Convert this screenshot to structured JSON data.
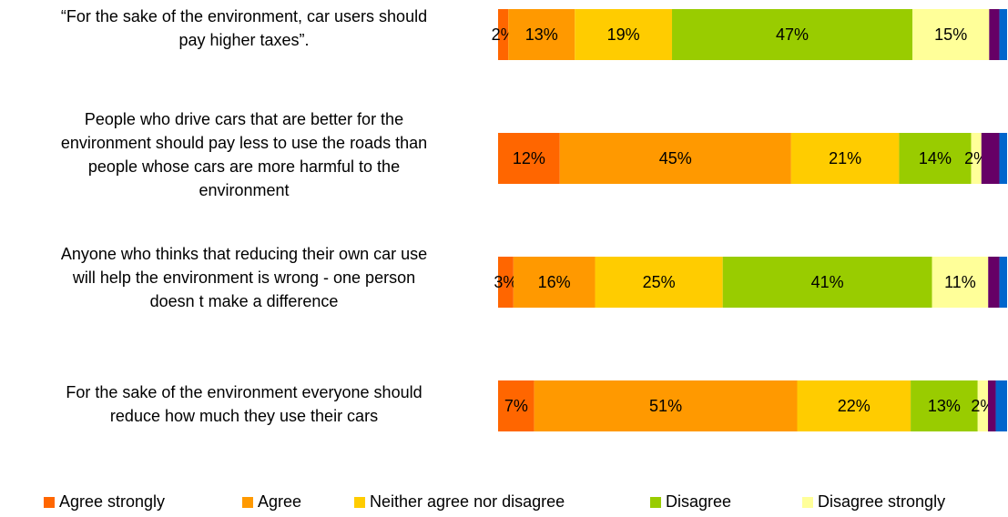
{
  "chart_data": {
    "type": "bar",
    "orientation": "horizontal",
    "stacked": true,
    "categories": [
      "“For the sake of the environment, car users should pay higher taxes”.",
      "People who drive cars that are better for the environment should pay less to use the roads than people whose cars are more harmful to the environment",
      "Anyone who thinks that reducing their own car use will help the environment is wrong - one person doesn t make a difference",
      "For the sake of the environment everyone should reduce how much they use their cars"
    ],
    "category_lines": [
      [
        "“For the sake of the environment, car users should",
        "pay higher taxes”."
      ],
      [
        "People who drive cars that are better for the",
        "environment should pay less to use the roads than",
        "people whose cars are more harmful to the",
        "environment"
      ],
      [
        "Anyone who thinks that reducing their own car use",
        "will help the environment is wrong - one person",
        "doesn t make a difference"
      ],
      [
        "For the sake of the environment everyone should",
        "reduce how much they use their cars"
      ]
    ],
    "series": [
      {
        "name": "Agree strongly",
        "color": "#ff6600",
        "values": [
          2,
          12,
          3,
          7
        ]
      },
      {
        "name": "Agree",
        "color": "#ff9900",
        "values": [
          13,
          45,
          16,
          51
        ]
      },
      {
        "name": "Neither agree nor disagree",
        "color": "#ffcc00",
        "values": [
          19,
          21,
          25,
          22
        ]
      },
      {
        "name": "Disagree",
        "color": "#99cc00",
        "values": [
          47,
          14,
          41,
          13
        ]
      },
      {
        "name": "Disagree strongly",
        "color": "#ffff99",
        "values": [
          15,
          2,
          11,
          2
        ]
      },
      {
        "name": "",
        "color": "#660066",
        "values": [
          2,
          3.5,
          2.2,
          1.5
        ]
      },
      {
        "name": "",
        "color": "#0066cc",
        "values": [
          1.5,
          1.5,
          1.5,
          2.2
        ]
      }
    ],
    "data_labels": [
      [
        "2%",
        "13%",
        "19%",
        "47%",
        "15%",
        "",
        ""
      ],
      [
        "12%",
        "45%",
        "21%",
        "14%",
        "2%",
        "",
        ""
      ],
      [
        "3%",
        "16%",
        "25%",
        "41%",
        "11%",
        "",
        ""
      ],
      [
        "7%",
        "51%",
        "22%",
        "13%",
        "2%",
        "",
        ""
      ]
    ],
    "xlim": [
      0,
      100
    ],
    "legend_position": "bottom",
    "grid": false,
    "title": "",
    "xlabel": "",
    "ylabel": ""
  }
}
